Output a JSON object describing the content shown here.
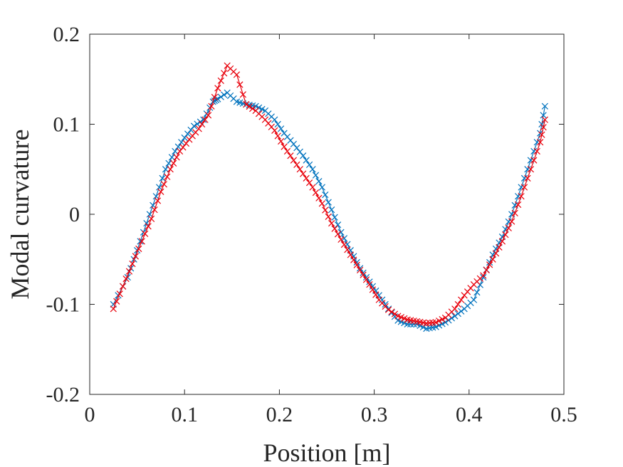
{
  "chart_data": {
    "type": "line",
    "title": "",
    "xlabel": "Position [m]",
    "ylabel": "Modal curvature",
    "xlim": [
      0,
      0.5
    ],
    "ylim": [
      -0.2,
      0.2
    ],
    "grid": false,
    "x_ticks": [
      0,
      0.1,
      0.2,
      0.3,
      0.4,
      0.5
    ],
    "x_tick_labels": [
      "0",
      "0.1",
      "0.2",
      "0.3",
      "0.4",
      "0.5"
    ],
    "y_ticks": [
      0.2,
      0.1,
      0,
      -0.1,
      -0.2
    ],
    "y_tick_labels": [
      "0.2",
      "0.1",
      "0",
      "-0.1",
      "-0.2"
    ],
    "marker": "x",
    "series": [
      {
        "color": "#0072BD",
        "points": [
          [
            0.025,
            -0.1
          ],
          [
            0.04,
            -0.07
          ],
          [
            0.05,
            -0.04
          ],
          [
            0.06,
            -0.01
          ],
          [
            0.07,
            0.02
          ],
          [
            0.08,
            0.05
          ],
          [
            0.09,
            0.07
          ],
          [
            0.1,
            0.085
          ],
          [
            0.11,
            0.098
          ],
          [
            0.12,
            0.105
          ],
          [
            0.13,
            0.125
          ],
          [
            0.135,
            0.128
          ],
          [
            0.145,
            0.135
          ],
          [
            0.155,
            0.125
          ],
          [
            0.165,
            0.122
          ],
          [
            0.175,
            0.12
          ],
          [
            0.185,
            0.115
          ],
          [
            0.195,
            0.105
          ],
          [
            0.205,
            0.09
          ],
          [
            0.215,
            0.078
          ],
          [
            0.225,
            0.065
          ],
          [
            0.235,
            0.05
          ],
          [
            0.245,
            0.03
          ],
          [
            0.255,
            0.005
          ],
          [
            0.265,
            -0.02
          ],
          [
            0.275,
            -0.04
          ],
          [
            0.285,
            -0.06
          ],
          [
            0.295,
            -0.075
          ],
          [
            0.305,
            -0.09
          ],
          [
            0.315,
            -0.105
          ],
          [
            0.325,
            -0.118
          ],
          [
            0.335,
            -0.122
          ],
          [
            0.345,
            -0.122
          ],
          [
            0.355,
            -0.127
          ],
          [
            0.365,
            -0.125
          ],
          [
            0.375,
            -0.12
          ],
          [
            0.385,
            -0.113
          ],
          [
            0.395,
            -0.105
          ],
          [
            0.405,
            -0.095
          ],
          [
            0.415,
            -0.07
          ],
          [
            0.425,
            -0.045
          ],
          [
            0.435,
            -0.025
          ],
          [
            0.445,
            0.0
          ],
          [
            0.455,
            0.03
          ],
          [
            0.465,
            0.06
          ],
          [
            0.475,
            0.09
          ],
          [
            0.48,
            0.12
          ]
        ]
      },
      {
        "color": "#E8000B",
        "points": [
          [
            0.025,
            -0.105
          ],
          [
            0.035,
            -0.08
          ],
          [
            0.045,
            -0.055
          ],
          [
            0.055,
            -0.03
          ],
          [
            0.065,
            -0.005
          ],
          [
            0.075,
            0.025
          ],
          [
            0.085,
            0.05
          ],
          [
            0.095,
            0.07
          ],
          [
            0.105,
            0.083
          ],
          [
            0.115,
            0.095
          ],
          [
            0.125,
            0.11
          ],
          [
            0.135,
            0.14
          ],
          [
            0.145,
            0.165
          ],
          [
            0.155,
            0.155
          ],
          [
            0.165,
            0.122
          ],
          [
            0.175,
            0.115
          ],
          [
            0.185,
            0.105
          ],
          [
            0.195,
            0.093
          ],
          [
            0.205,
            0.075
          ],
          [
            0.215,
            0.06
          ],
          [
            0.225,
            0.045
          ],
          [
            0.235,
            0.03
          ],
          [
            0.245,
            0.012
          ],
          [
            0.255,
            -0.01
          ],
          [
            0.265,
            -0.028
          ],
          [
            0.275,
            -0.045
          ],
          [
            0.285,
            -0.062
          ],
          [
            0.295,
            -0.078
          ],
          [
            0.305,
            -0.095
          ],
          [
            0.315,
            -0.106
          ],
          [
            0.325,
            -0.113
          ],
          [
            0.335,
            -0.117
          ],
          [
            0.345,
            -0.119
          ],
          [
            0.355,
            -0.121
          ],
          [
            0.365,
            -0.12
          ],
          [
            0.375,
            -0.115
          ],
          [
            0.385,
            -0.105
          ],
          [
            0.395,
            -0.09
          ],
          [
            0.405,
            -0.078
          ],
          [
            0.415,
            -0.068
          ],
          [
            0.425,
            -0.05
          ],
          [
            0.435,
            -0.03
          ],
          [
            0.445,
            -0.008
          ],
          [
            0.455,
            0.02
          ],
          [
            0.465,
            0.05
          ],
          [
            0.475,
            0.08
          ],
          [
            0.48,
            0.105
          ]
        ]
      }
    ]
  }
}
